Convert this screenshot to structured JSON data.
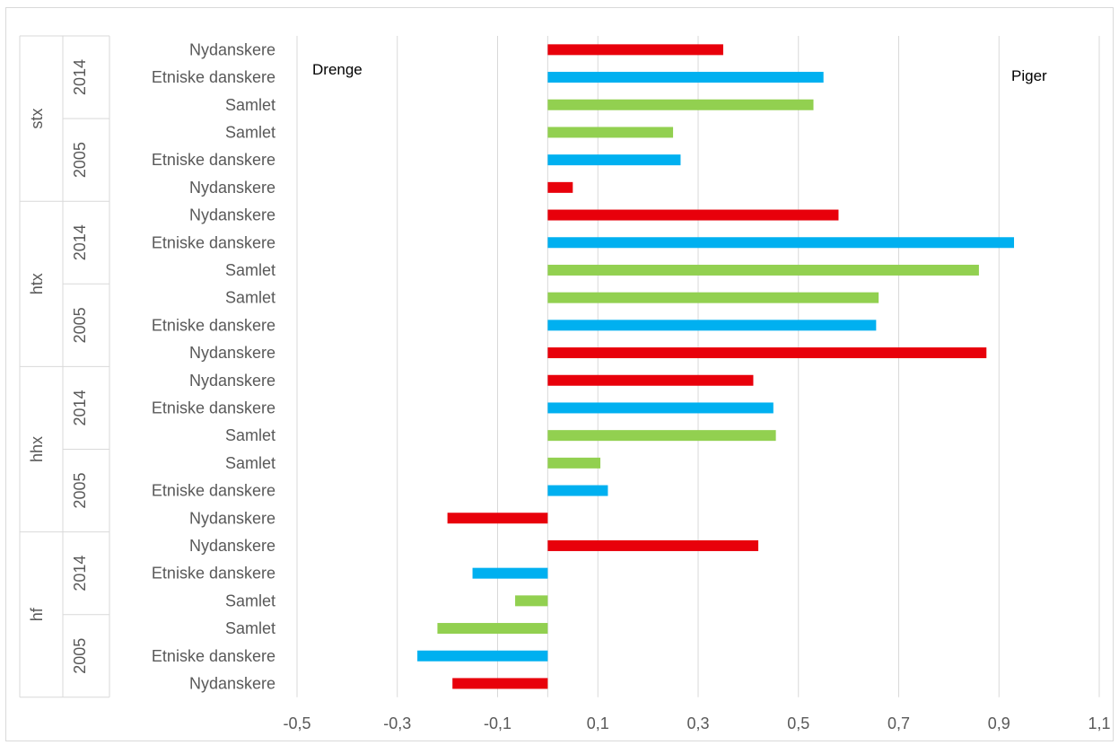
{
  "chart_data": {
    "type": "bar",
    "orientation": "horizontal",
    "title": "",
    "xlabel": "",
    "ylabel": "",
    "xlim": [
      -0.5,
      1.1
    ],
    "x_ticks": [
      "-0,5",
      "-0,3",
      "-0,1",
      "0,1",
      "0,3",
      "0,5",
      "0,7",
      "0,9",
      "1,1"
    ],
    "grid": true,
    "legend": "none",
    "annotations": {
      "left": "Drenge",
      "right": "Piger"
    },
    "colors": {
      "Nydanskere": "#e8000b",
      "Etniske danskere": "#00b0f0",
      "Samlet": "#92d050"
    },
    "groups": [
      {
        "name": "stx",
        "years": [
          {
            "year": "2014",
            "rows": [
              {
                "label": "Nydanskere",
                "value": 0.35
              },
              {
                "label": "Etniske danskere",
                "value": 0.55
              },
              {
                "label": "Samlet",
                "value": 0.53
              }
            ]
          },
          {
            "year": "2005",
            "rows": [
              {
                "label": "Samlet",
                "value": 0.25
              },
              {
                "label": "Etniske danskere",
                "value": 0.265
              },
              {
                "label": "Nydanskere",
                "value": 0.05
              }
            ]
          }
        ]
      },
      {
        "name": "htx",
        "years": [
          {
            "year": "2014",
            "rows": [
              {
                "label": "Nydanskere",
                "value": 0.58
              },
              {
                "label": "Etniske danskere",
                "value": 0.93
              },
              {
                "label": "Samlet",
                "value": 0.86
              }
            ]
          },
          {
            "year": "2005",
            "rows": [
              {
                "label": "Samlet",
                "value": 0.66
              },
              {
                "label": "Etniske danskere",
                "value": 0.655
              },
              {
                "label": "Nydanskere",
                "value": 0.875
              }
            ]
          }
        ]
      },
      {
        "name": "hhx",
        "years": [
          {
            "year": "2014",
            "rows": [
              {
                "label": "Nydanskere",
                "value": 0.41
              },
              {
                "label": "Etniske danskere",
                "value": 0.45
              },
              {
                "label": "Samlet",
                "value": 0.455
              }
            ]
          },
          {
            "year": "2005",
            "rows": [
              {
                "label": "Samlet",
                "value": 0.105
              },
              {
                "label": "Etniske danskere",
                "value": 0.12
              },
              {
                "label": "Nydanskere",
                "value": -0.2
              }
            ]
          }
        ]
      },
      {
        "name": "hf",
        "years": [
          {
            "year": "2014",
            "rows": [
              {
                "label": "Nydanskere",
                "value": 0.42
              },
              {
                "label": "Etniske danskere",
                "value": -0.15
              },
              {
                "label": "Samlet",
                "value": -0.065
              }
            ]
          },
          {
            "year": "2005",
            "rows": [
              {
                "label": "Samlet",
                "value": -0.22
              },
              {
                "label": "Etniske danskere",
                "value": -0.26
              },
              {
                "label": "Nydanskere",
                "value": -0.19
              }
            ]
          }
        ]
      }
    ]
  }
}
